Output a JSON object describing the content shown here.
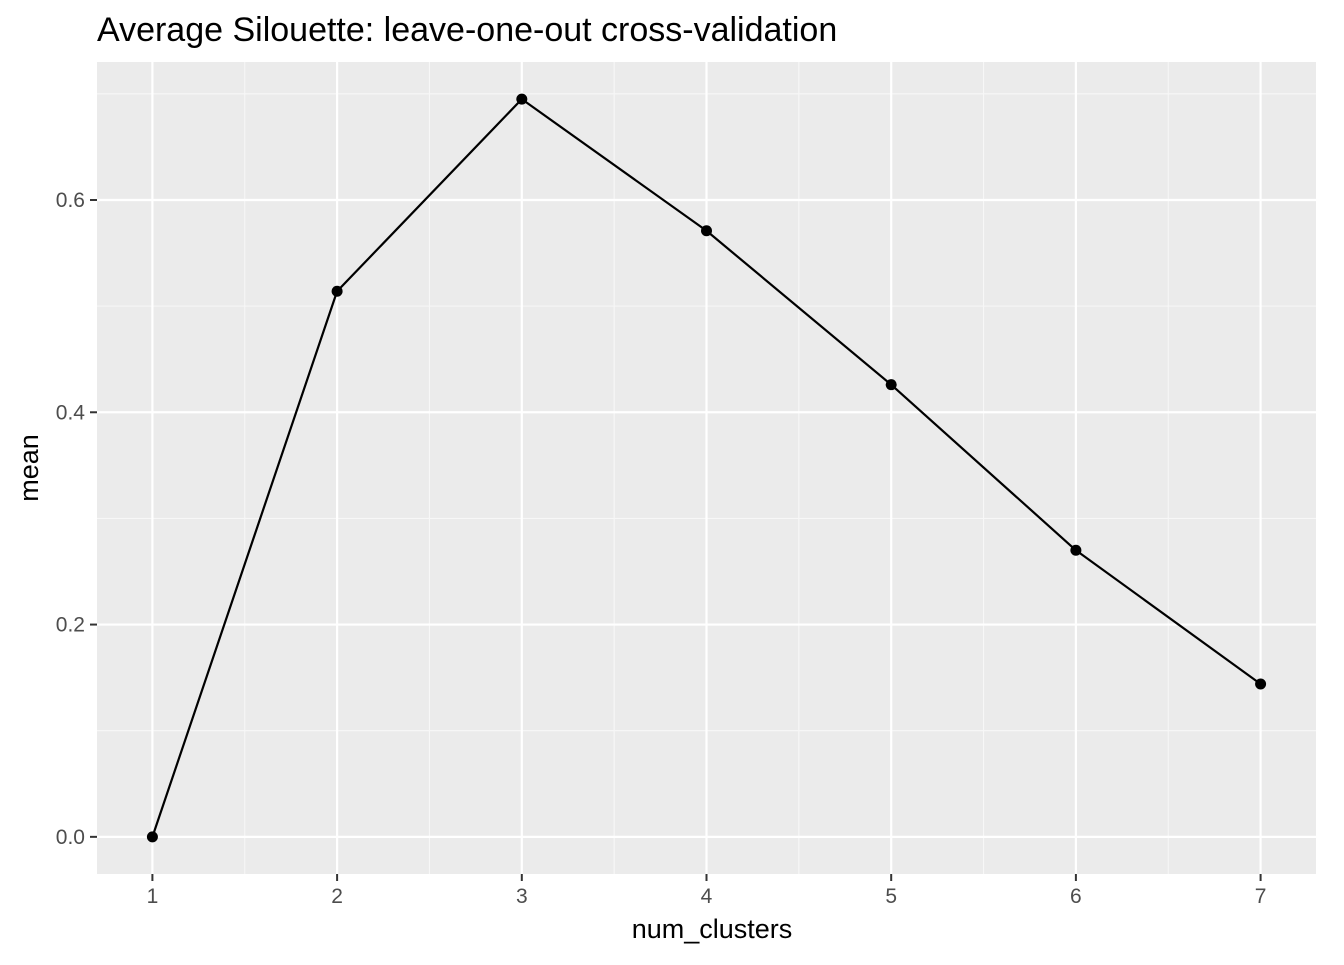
{
  "chart_data": {
    "type": "line",
    "title": "Average Silouette: leave-one-out cross-validation",
    "xlabel": "num_clusters",
    "ylabel": "mean",
    "x": [
      1,
      2,
      3,
      4,
      5,
      6,
      7
    ],
    "y": [
      0.0,
      0.514,
      0.695,
      0.571,
      0.426,
      0.27,
      0.144
    ],
    "xlim": [
      0.7,
      7.3
    ],
    "ylim": [
      -0.035,
      0.73
    ],
    "xticks": [
      1,
      2,
      3,
      4,
      5,
      6,
      7
    ],
    "xtick_labels": [
      "1",
      "2",
      "3",
      "4",
      "5",
      "6",
      "7"
    ],
    "yticks": [
      0.0,
      0.2,
      0.4,
      0.6
    ],
    "ytick_labels": [
      "0.0",
      "0.2",
      "0.4",
      "0.6"
    ],
    "grid": true,
    "legend": "none",
    "colors": {
      "panel_background": "#ebebeb",
      "grid_major": "#ffffff",
      "grid_minor": "#f7f7f7",
      "line": "#000000",
      "point": "#000000",
      "tick_text": "#4d4d4d",
      "tick_mark": "#333333"
    }
  }
}
